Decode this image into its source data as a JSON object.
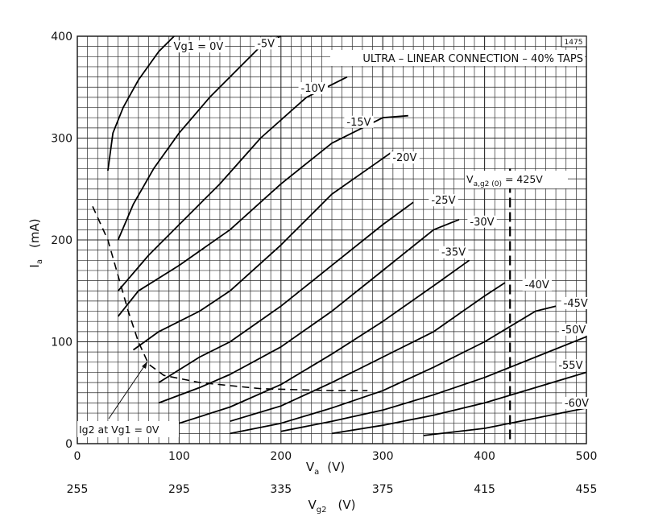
{
  "chart_data": {
    "type": "line",
    "title": "ULTRA – LINEAR CONNECTION – 40% TAPS",
    "corner_code": "1475",
    "xlabel": "Va (V)",
    "xlabel_main": "V",
    "xlabel_sub": "a",
    "xlabel_unit": "(V)",
    "x2label": "Vg2 (V)",
    "x2label_main": "V",
    "x2label_sub": "g2",
    "x2label_unit": "(V)",
    "ylabel": "Ia (mA)",
    "ylabel_main": "I",
    "ylabel_sub": "a",
    "ylabel_unit": "(mA)",
    "xlim": [
      0,
      500
    ],
    "ylim": [
      0,
      400
    ],
    "x_ticks": [
      "0",
      "100",
      "200",
      "300",
      "400",
      "500"
    ],
    "x2_ticks": [
      "255",
      "295",
      "335",
      "375",
      "415",
      "455"
    ],
    "y_ticks": [
      "0",
      "100",
      "200",
      "300",
      "400"
    ],
    "grid": true,
    "series": [
      {
        "name": "Vg1 = 0V",
        "points": [
          [
            30,
            268
          ],
          [
            35,
            305
          ],
          [
            45,
            330
          ],
          [
            60,
            357
          ],
          [
            80,
            385
          ],
          [
            95,
            400
          ]
        ]
      },
      {
        "name": "-5V",
        "points": [
          [
            40,
            200
          ],
          [
            55,
            235
          ],
          [
            75,
            270
          ],
          [
            100,
            305
          ],
          [
            130,
            340
          ],
          [
            160,
            370
          ],
          [
            185,
            395
          ],
          [
            200,
            400
          ]
        ]
      },
      {
        "name": "-10V",
        "points": [
          [
            40,
            150
          ],
          [
            70,
            185
          ],
          [
            100,
            215
          ],
          [
            140,
            255
          ],
          [
            180,
            300
          ],
          [
            225,
            340
          ],
          [
            265,
            360
          ]
        ]
      },
      {
        "name": "-15V",
        "points": [
          [
            40,
            125
          ],
          [
            60,
            150
          ],
          [
            100,
            175
          ],
          [
            150,
            210
          ],
          [
            200,
            255
          ],
          [
            250,
            295
          ],
          [
            300,
            320
          ],
          [
            325,
            322
          ]
        ]
      },
      {
        "name": "-20V",
        "points": [
          [
            55,
            92
          ],
          [
            80,
            110
          ],
          [
            120,
            130
          ],
          [
            150,
            150
          ],
          [
            200,
            195
          ],
          [
            250,
            245
          ],
          [
            300,
            280
          ],
          [
            310,
            287
          ]
        ]
      },
      {
        "name": "-25V",
        "points": [
          [
            80,
            60
          ],
          [
            120,
            85
          ],
          [
            150,
            100
          ],
          [
            200,
            135
          ],
          [
            250,
            175
          ],
          [
            300,
            215
          ],
          [
            330,
            237
          ]
        ]
      },
      {
        "name": "-30V",
        "points": [
          [
            80,
            40
          ],
          [
            120,
            55
          ],
          [
            150,
            68
          ],
          [
            200,
            95
          ],
          [
            250,
            130
          ],
          [
            300,
            170
          ],
          [
            350,
            210
          ],
          [
            375,
            220
          ]
        ]
      },
      {
        "name": "-35V",
        "points": [
          [
            100,
            20
          ],
          [
            150,
            36
          ],
          [
            200,
            58
          ],
          [
            250,
            88
          ],
          [
            300,
            120
          ],
          [
            350,
            155
          ],
          [
            385,
            180
          ]
        ]
      },
      {
        "name": "-40V",
        "points": [
          [
            150,
            22
          ],
          [
            200,
            37
          ],
          [
            250,
            60
          ],
          [
            300,
            85
          ],
          [
            350,
            110
          ],
          [
            400,
            145
          ],
          [
            420,
            158
          ]
        ]
      },
      {
        "name": "-45V",
        "points": [
          [
            150,
            10
          ],
          [
            200,
            20
          ],
          [
            250,
            35
          ],
          [
            300,
            52
          ],
          [
            350,
            75
          ],
          [
            400,
            100
          ],
          [
            450,
            130
          ],
          [
            470,
            135
          ]
        ]
      },
      {
        "name": "-50V",
        "points": [
          [
            200,
            12
          ],
          [
            250,
            22
          ],
          [
            300,
            33
          ],
          [
            350,
            48
          ],
          [
            400,
            65
          ],
          [
            450,
            85
          ],
          [
            500,
            105
          ]
        ]
      },
      {
        "name": "-55V",
        "points": [
          [
            250,
            10
          ],
          [
            300,
            18
          ],
          [
            350,
            28
          ],
          [
            400,
            40
          ],
          [
            450,
            55
          ],
          [
            500,
            70
          ]
        ]
      },
      {
        "name": "-60V",
        "points": [
          [
            340,
            8
          ],
          [
            400,
            15
          ],
          [
            450,
            25
          ],
          [
            500,
            35
          ]
        ]
      }
    ],
    "curve_labels": [
      {
        "series": 0,
        "text": "Vg1 = 0V",
        "at": [
          93,
          388
        ]
      },
      {
        "series": 1,
        "text": "-5V",
        "at": [
          175,
          391
        ]
      },
      {
        "series": 2,
        "text": "-10V",
        "at": [
          218,
          347
        ]
      },
      {
        "series": 3,
        "text": "-15V",
        "at": [
          263,
          314
        ]
      },
      {
        "series": 4,
        "text": "-20V",
        "at": [
          308,
          279
        ]
      },
      {
        "series": 5,
        "text": "-25V",
        "at": [
          346,
          237
        ]
      },
      {
        "series": 6,
        "text": "-30V",
        "at": [
          384,
          216
        ]
      },
      {
        "series": 7,
        "text": "-35V",
        "at": [
          356,
          186
        ]
      },
      {
        "series": 8,
        "text": "-40V",
        "at": [
          438,
          154
        ]
      },
      {
        "series": 9,
        "text": "-45V",
        "at": [
          476,
          136
        ]
      },
      {
        "series": 10,
        "text": "-50V",
        "at": [
          474,
          110
        ]
      },
      {
        "series": 11,
        "text": "-55V",
        "at": [
          471,
          75
        ]
      },
      {
        "series": 12,
        "text": "-60V",
        "at": [
          477,
          38
        ]
      }
    ],
    "ig2_curve": {
      "text": "Ig2 at Vg1 = 0V",
      "points": [
        [
          15,
          233
        ],
        [
          30,
          200
        ],
        [
          40,
          165
        ],
        [
          50,
          130
        ],
        [
          60,
          100
        ],
        [
          70,
          78
        ],
        [
          85,
          67
        ],
        [
          120,
          60
        ],
        [
          180,
          54
        ],
        [
          250,
          52
        ],
        [
          285,
          52
        ]
      ]
    },
    "vline": {
      "x": 425,
      "text": "Va,g2 (0) = 425V",
      "text_main": "V",
      "text_sub": "a,g2 (0)",
      "text_tail": " = 425V"
    }
  }
}
